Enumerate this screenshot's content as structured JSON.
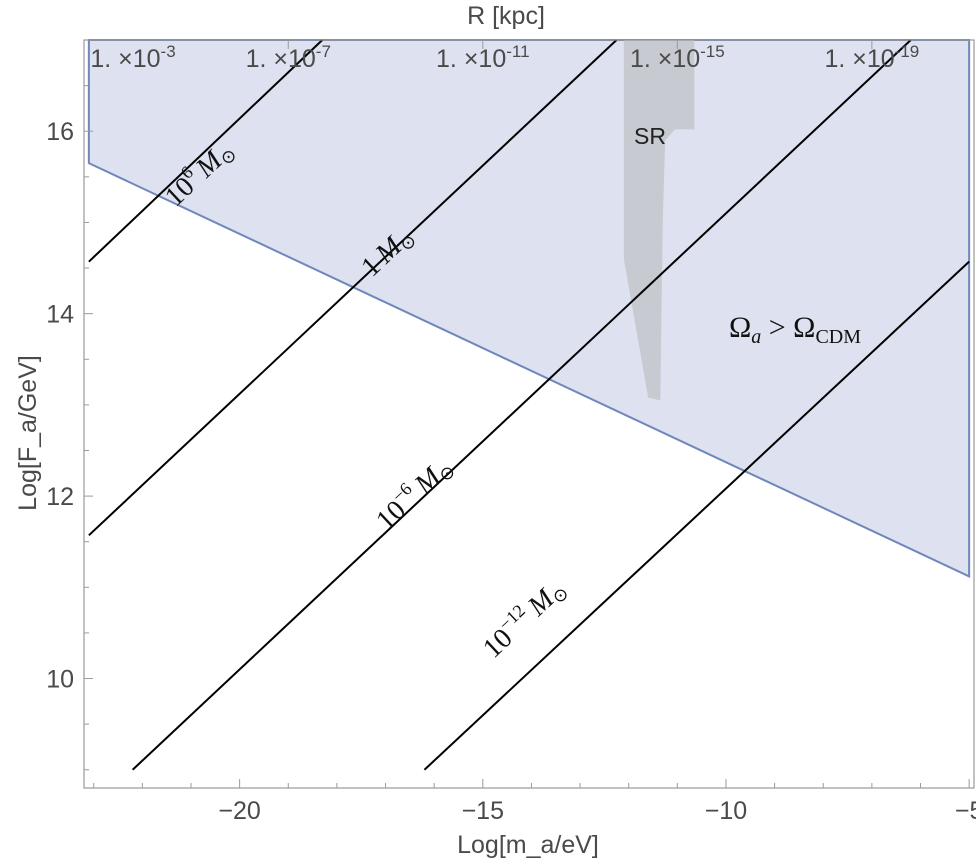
{
  "chart_data": {
    "type": "line",
    "xlabel": "Log[m_a/eV]",
    "ylabel": "Log[F_a/GeV]",
    "top_axis_label": "R [kpc]",
    "xlim": [
      -23.2,
      -4.9
    ],
    "ylim": [
      8.8,
      17.0
    ],
    "x_ticks": [
      -20,
      -15,
      -10,
      -5
    ],
    "y_ticks": [
      10,
      12,
      14,
      16
    ],
    "top_ticks": [
      {
        "x": -23.2,
        "label": "1. ×10",
        "exp": "-3"
      },
      {
        "x": -19.0,
        "label": "1. ×10",
        "exp": "-7"
      },
      {
        "x": -15.0,
        "label": "1. ×10",
        "exp": "-11"
      },
      {
        "x": -11.0,
        "label": "1. ×10",
        "exp": "-15"
      },
      {
        "x": -7.0,
        "label": "1. ×10",
        "exp": "-19"
      }
    ],
    "grid": false,
    "regions": [
      {
        "name": "Ω_a > Ω_CDM",
        "label": "Ω",
        "sub1": "a",
        "rel": " > Ω",
        "sub2": "CDM",
        "color": "#c9d0e6",
        "stroke": "#6f87bb",
        "polygon": [
          [
            -23.1,
            15.65
          ],
          [
            -23.1,
            17.0
          ],
          [
            -5.0,
            17.0
          ],
          [
            -5.0,
            11.12
          ]
        ]
      },
      {
        "name": "SR",
        "label": "SR",
        "color": "#c4c6cc",
        "polygon": [
          [
            -12.1,
            17.0
          ],
          [
            -10.65,
            17.0
          ],
          [
            -10.65,
            16.02
          ],
          [
            -11.05,
            16.02
          ],
          [
            -11.25,
            15.9
          ],
          [
            -11.3,
            15.0
          ],
          [
            -11.35,
            13.05
          ],
          [
            -11.6,
            13.08
          ],
          [
            -12.1,
            14.6
          ]
        ]
      }
    ],
    "series": [
      {
        "name": "10^6 M⊙",
        "base": "10",
        "exp": "6",
        "unit": "M",
        "x": [
          -23.1,
          -18.3
        ],
        "y": [
          14.57,
          17.0
        ]
      },
      {
        "name": "1 M⊙",
        "base": "1",
        "exp": "",
        "unit": "M",
        "x": [
          -23.1,
          -12.25
        ],
        "y": [
          11.57,
          17.0
        ]
      },
      {
        "name": "10^-6 M⊙",
        "base": "10",
        "exp": "−6",
        "unit": "M",
        "x": [
          -22.2,
          -6.2
        ],
        "y": [
          9.0,
          17.0
        ]
      },
      {
        "name": "10^-12 M⊙",
        "base": "10",
        "exp": "−12",
        "unit": "M",
        "x": [
          -16.2,
          -5.0
        ],
        "y": [
          9.0,
          14.57
        ]
      }
    ]
  }
}
